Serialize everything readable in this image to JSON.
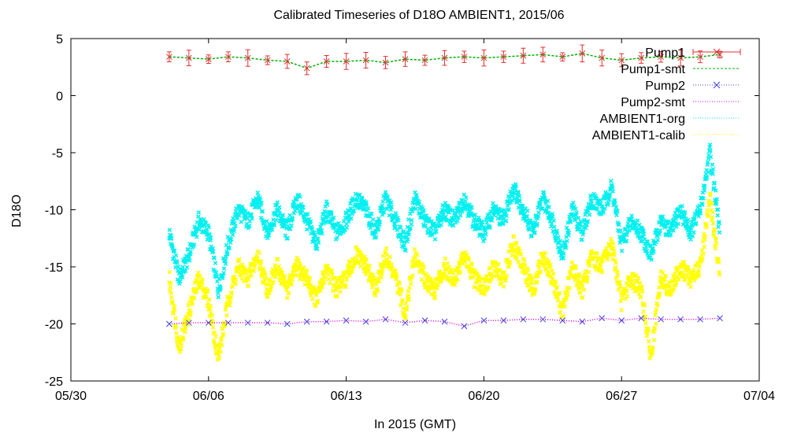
{
  "chart_data": {
    "type": "scatter",
    "title": "Calibrated Timeseries of D18O AMBIENT1, 2015/06",
    "xlabel": "In 2015 (GMT)",
    "ylabel": "D18O",
    "x_ticks": [
      "05/30",
      "06/06",
      "06/13",
      "06/20",
      "06/27",
      "07/04"
    ],
    "y_ticks": [
      5,
      0,
      -5,
      -10,
      -15,
      -20,
      -25
    ],
    "x_range": [
      "2015-05-30",
      "2015-07-04"
    ],
    "ylim": [
      -25,
      5
    ],
    "grid": false,
    "legend_position": "top-right",
    "series": [
      {
        "name": "Pump1",
        "color": "#e03030",
        "style": "points-errorbars",
        "x": [
          "06-04",
          "06-05",
          "06-06",
          "06-07",
          "06-08",
          "06-09",
          "06-10",
          "06-11",
          "06-12",
          "06-13",
          "06-14",
          "06-15",
          "06-16",
          "06-17",
          "06-18",
          "06-19",
          "06-20",
          "06-21",
          "06-22",
          "06-23",
          "06-24",
          "06-25",
          "06-26",
          "06-27",
          "06-28",
          "06-29",
          "06-30",
          "07-01",
          "07-02"
        ],
        "y": [
          3.4,
          3.3,
          3.2,
          3.4,
          3.3,
          3.1,
          3.0,
          2.4,
          3.0,
          3.0,
          3.1,
          2.9,
          3.2,
          3.1,
          3.3,
          3.4,
          3.3,
          3.4,
          3.5,
          3.6,
          3.4,
          3.7,
          3.3,
          3.1,
          3.3,
          3.4,
          3.3,
          3.4,
          3.6
        ]
      },
      {
        "name": "Pump1-smt",
        "color": "#00b000",
        "style": "dashed-line",
        "x": [
          "06-04",
          "06-05",
          "06-06",
          "06-07",
          "06-08",
          "06-09",
          "06-10",
          "06-11",
          "06-12",
          "06-13",
          "06-14",
          "06-15",
          "06-16",
          "06-17",
          "06-18",
          "06-19",
          "06-20",
          "06-21",
          "06-22",
          "06-23",
          "06-24",
          "06-25",
          "06-26",
          "06-27",
          "06-28",
          "06-29",
          "06-30",
          "07-01",
          "07-02"
        ],
        "y": [
          3.4,
          3.3,
          3.2,
          3.4,
          3.3,
          3.1,
          3.0,
          2.4,
          3.0,
          3.0,
          3.1,
          2.9,
          3.2,
          3.1,
          3.3,
          3.4,
          3.3,
          3.4,
          3.5,
          3.6,
          3.4,
          3.7,
          3.3,
          3.1,
          3.3,
          3.4,
          3.3,
          3.4,
          3.6
        ]
      },
      {
        "name": "Pump2",
        "color": "#4040e0",
        "style": "points",
        "x": [
          "06-04",
          "06-05",
          "06-06",
          "06-07",
          "06-08",
          "06-09",
          "06-10",
          "06-11",
          "06-12",
          "06-13",
          "06-14",
          "06-15",
          "06-16",
          "06-17",
          "06-18",
          "06-19",
          "06-20",
          "06-21",
          "06-22",
          "06-23",
          "06-24",
          "06-25",
          "06-26",
          "06-27",
          "06-28",
          "06-29",
          "06-30",
          "07-01",
          "07-02"
        ],
        "y": [
          -20.0,
          -19.9,
          -19.9,
          -19.9,
          -19.9,
          -19.9,
          -20.0,
          -19.8,
          -19.8,
          -19.7,
          -19.8,
          -19.6,
          -19.9,
          -19.7,
          -19.8,
          -20.2,
          -19.7,
          -19.7,
          -19.6,
          -19.6,
          -19.7,
          -19.8,
          -19.5,
          -19.7,
          -19.5,
          -19.6,
          -19.6,
          -19.6,
          -19.5
        ]
      },
      {
        "name": "Pump2-smt",
        "color": "#e000e0",
        "style": "dotted-line",
        "x": [
          "06-04",
          "06-05",
          "06-06",
          "06-07",
          "06-08",
          "06-09",
          "06-10",
          "06-11",
          "06-12",
          "06-13",
          "06-14",
          "06-15",
          "06-16",
          "06-17",
          "06-18",
          "06-19",
          "06-20",
          "06-21",
          "06-22",
          "06-23",
          "06-24",
          "06-25",
          "06-26",
          "06-27",
          "06-28",
          "06-29",
          "06-30",
          "07-01",
          "07-02"
        ],
        "y": [
          -20.0,
          -19.9,
          -19.9,
          -19.9,
          -19.9,
          -19.9,
          -20.0,
          -19.8,
          -19.8,
          -19.7,
          -19.8,
          -19.6,
          -19.9,
          -19.7,
          -19.8,
          -20.2,
          -19.7,
          -19.7,
          -19.6,
          -19.6,
          -19.7,
          -19.8,
          -19.5,
          -19.7,
          -19.5,
          -19.6,
          -19.6,
          -19.6,
          -19.5
        ]
      },
      {
        "name": "AMBIENT1-org",
        "color": "#00f0f0",
        "style": "dense-points",
        "x": [
          "06-04",
          "06-04 12:00",
          "06-05",
          "06-05 12:00",
          "06-06",
          "06-06 12:00",
          "06-07",
          "06-07 12:00",
          "06-08",
          "06-08 12:00",
          "06-09",
          "06-09 12:00",
          "06-10",
          "06-10 12:00",
          "06-11",
          "06-11 12:00",
          "06-12",
          "06-12 12:00",
          "06-13",
          "06-13 12:00",
          "06-14",
          "06-14 12:00",
          "06-15",
          "06-15 12:00",
          "06-16",
          "06-16 12:00",
          "06-17",
          "06-17 12:00",
          "06-18",
          "06-18 12:00",
          "06-19",
          "06-19 12:00",
          "06-20",
          "06-20 12:00",
          "06-21",
          "06-21 12:00",
          "06-22",
          "06-22 12:00",
          "06-23",
          "06-23 12:00",
          "06-24",
          "06-24 12:00",
          "06-25",
          "06-25 12:00",
          "06-26",
          "06-26 12:00",
          "06-27",
          "06-27 12:00",
          "06-28",
          "06-28 12:00",
          "06-29",
          "06-29 12:00",
          "06-30",
          "06-30 12:00",
          "07-01",
          "07-01 12:00",
          "07-02"
        ],
        "y": [
          -12,
          -16,
          -14,
          -11,
          -12,
          -17,
          -13,
          -10,
          -11,
          -9,
          -12,
          -10,
          -12,
          -9,
          -11,
          -13,
          -10,
          -12,
          -11,
          -9,
          -10,
          -12,
          -9,
          -11,
          -13,
          -9,
          -11,
          -12,
          -10,
          -11,
          -9,
          -11,
          -12,
          -10,
          -11,
          -8,
          -10,
          -12,
          -9,
          -11,
          -14,
          -10,
          -12,
          -9,
          -10,
          -8,
          -13,
          -11,
          -12,
          -14,
          -11,
          -12,
          -10,
          -12,
          -10,
          -5,
          -12
        ]
      },
      {
        "name": "AMBIENT1-calib",
        "color": "#ffff00",
        "style": "dense-points",
        "x": [
          "06-04",
          "06-04 12:00",
          "06-05",
          "06-05 12:00",
          "06-06",
          "06-06 12:00",
          "06-07",
          "06-07 12:00",
          "06-08",
          "06-08 12:00",
          "06-09",
          "06-09 12:00",
          "06-10",
          "06-10 12:00",
          "06-11",
          "06-11 12:00",
          "06-12",
          "06-12 12:00",
          "06-13",
          "06-13 12:00",
          "06-14",
          "06-14 12:00",
          "06-15",
          "06-15 12:00",
          "06-16",
          "06-16 12:00",
          "06-17",
          "06-17 12:00",
          "06-18",
          "06-18 12:00",
          "06-19",
          "06-19 12:00",
          "06-20",
          "06-20 12:00",
          "06-21",
          "06-21 12:00",
          "06-22",
          "06-22 12:00",
          "06-23",
          "06-23 12:00",
          "06-24",
          "06-24 12:00",
          "06-25",
          "06-25 12:00",
          "06-26",
          "06-26 12:00",
          "06-27",
          "06-27 12:00",
          "06-28",
          "06-28 12:00",
          "06-29",
          "06-29 12:00",
          "06-30",
          "06-30 12:00",
          "07-01",
          "07-01 12:00",
          "07-02"
        ],
        "y": [
          -16,
          -22,
          -19,
          -16,
          -18,
          -23,
          -18,
          -15,
          -16,
          -14,
          -17,
          -15,
          -17,
          -15,
          -16,
          -18,
          -15,
          -17,
          -16,
          -14,
          -15,
          -17,
          -14,
          -16,
          -19,
          -14,
          -16,
          -17,
          -15,
          -16,
          -14,
          -16,
          -17,
          -15,
          -16,
          -13,
          -15,
          -17,
          -14,
          -16,
          -19,
          -15,
          -17,
          -14,
          -15,
          -13,
          -18,
          -16,
          -17,
          -23,
          -16,
          -17,
          -15,
          -16,
          -15,
          -9,
          -16
        ]
      }
    ]
  }
}
